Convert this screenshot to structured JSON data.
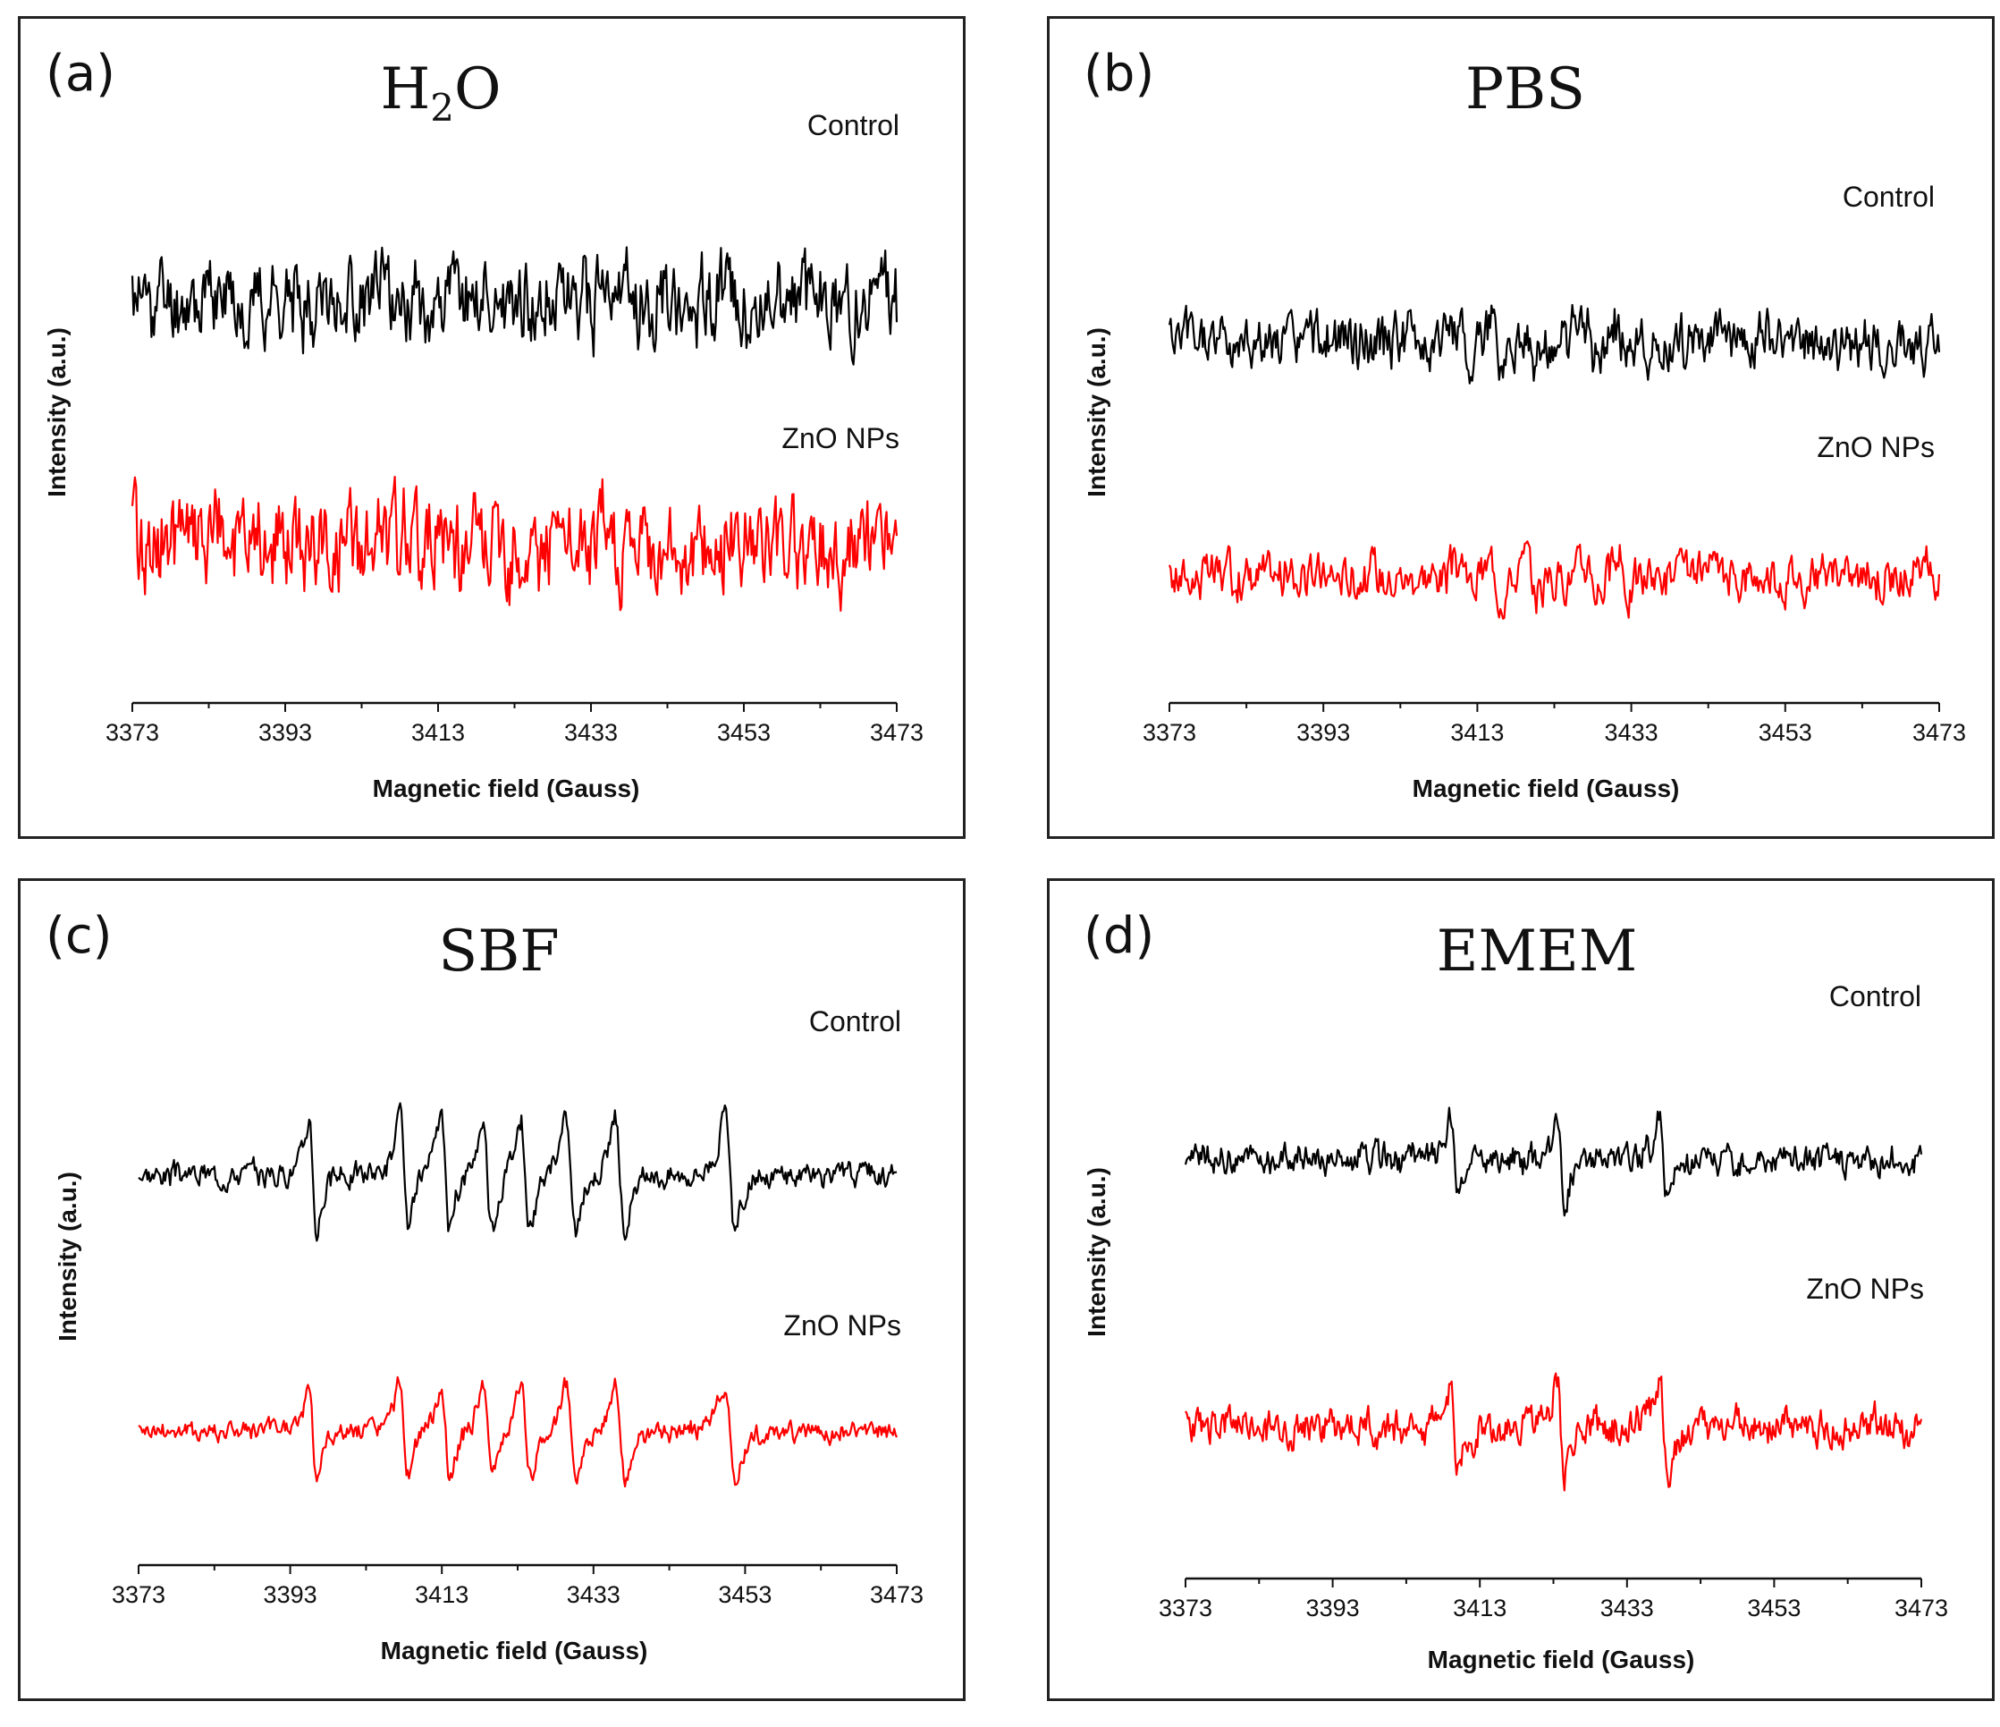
{
  "chart_data": [
    {
      "type": "line",
      "panel_label": "(a)",
      "title": "H2O",
      "title_main": "H",
      "title_sub": "2",
      "title_end": "O",
      "xlabel": "Magnetic field (Gauss)",
      "ylabel": "Intensity (a.u.)",
      "xlim": [
        3373,
        3473
      ],
      "xticks": [
        3373,
        3393,
        3413,
        3433,
        3453,
        3473
      ],
      "series": [
        {
          "name": "Control",
          "color": "#000000",
          "pattern": "noise",
          "seed": 11,
          "baseline": 0.72,
          "amplitude": 0.11
        },
        {
          "name": "ZnO NPs",
          "color": "#ff0000",
          "pattern": "noise",
          "seed": 29,
          "baseline": 0.28,
          "amplitude": 0.13
        }
      ]
    },
    {
      "type": "line",
      "panel_label": "(b)",
      "title": "PBS",
      "xlabel": "Magnetic field (Gauss)",
      "ylabel": "Intensity (a.u.)",
      "xlim": [
        3373,
        3473
      ],
      "xticks": [
        3373,
        3393,
        3413,
        3433,
        3453,
        3473
      ],
      "series": [
        {
          "name": "Control",
          "color": "#000000",
          "pattern": "dmpo",
          "seed": 5,
          "baseline": 0.7,
          "amplitude": 0.11
        },
        {
          "name": "ZnO NPs",
          "color": "#ff0000",
          "pattern": "dmpo",
          "seed": 17,
          "baseline": 0.24,
          "amplitude": 0.09
        }
      ]
    },
    {
      "type": "line",
      "panel_label": "(c)",
      "title": "SBF",
      "xlabel": "Magnetic field (Gauss)",
      "ylabel": "Intensity (a.u.)",
      "xlim": [
        3373,
        3473
      ],
      "xticks": [
        3373,
        3393,
        3413,
        3433,
        3453,
        3473
      ],
      "series": [
        {
          "name": "Control",
          "color": "#000000",
          "pattern": "sextet",
          "seed": 3,
          "baseline": 0.72,
          "amplitude": 0.18
        },
        {
          "name": "ZnO NPs",
          "color": "#ff0000",
          "pattern": "sextet",
          "seed": 41,
          "baseline": 0.24,
          "amplitude": 0.15
        }
      ]
    },
    {
      "type": "line",
      "panel_label": "(d)",
      "title": "EMEM",
      "xlabel": "Magnetic field (Gauss)",
      "ylabel": "Intensity (a.u.)",
      "xlim": [
        3373,
        3473
      ],
      "xticks": [
        3373,
        3393,
        3413,
        3433,
        3453,
        3473
      ],
      "series": [
        {
          "name": "Control",
          "color": "#000000",
          "pattern": "quartet",
          "seed": 9,
          "baseline": 0.73,
          "amplitude": 0.12
        },
        {
          "name": "ZnO NPs",
          "color": "#ff0000",
          "pattern": "quartet",
          "seed": 23,
          "baseline": 0.26,
          "amplitude": 0.15
        }
      ]
    }
  ]
}
